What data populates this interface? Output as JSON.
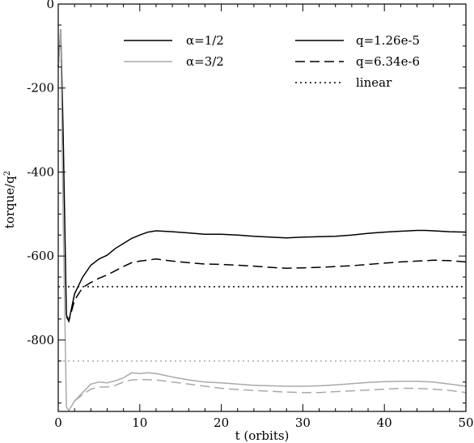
{
  "chart_data": {
    "type": "line",
    "xlabel": "t (orbits)",
    "ylabel": "torque/q",
    "ylabel_superscript": "2",
    "xlim": [
      0,
      50
    ],
    "ylim": [
      -970,
      0
    ],
    "xticks": [
      0,
      10,
      20,
      30,
      40,
      50
    ],
    "yticks": [
      0,
      -200,
      -400,
      -600,
      -800
    ],
    "legend_alpha": [
      {
        "label": "α=1/2",
        "color": "#000000"
      },
      {
        "label": "α=3/2",
        "color": "#aaaaaa"
      }
    ],
    "legend_q": [
      {
        "label": "q=1.26e-5",
        "style": "solid"
      },
      {
        "label": "q=6.34e-6",
        "style": "dashed"
      },
      {
        "label": "linear",
        "style": "dotted"
      }
    ],
    "series": [
      {
        "alpha": "1/2",
        "q": "1.26e-5",
        "color": "#000000",
        "style": "solid",
        "x": [
          0,
          0.3,
          0.6,
          1.0,
          1.3,
          2,
          3,
          4,
          5,
          6,
          7,
          8,
          9,
          10,
          11,
          12,
          14,
          16,
          18,
          20,
          22,
          24,
          26,
          28,
          30,
          32,
          34,
          36,
          38,
          40,
          42,
          44,
          45,
          46,
          48,
          50
        ],
        "y": [
          -150,
          -60,
          -300,
          -740,
          -755,
          -690,
          -650,
          -622,
          -607,
          -598,
          -582,
          -570,
          -558,
          -550,
          -543,
          -540,
          -542,
          -545,
          -548,
          -548,
          -550,
          -553,
          -555,
          -557,
          -555,
          -554,
          -553,
          -550,
          -546,
          -543,
          -541,
          -539,
          -539,
          -540,
          -542,
          -543
        ]
      },
      {
        "alpha": "1/2",
        "q": "6.34e-6",
        "color": "#000000",
        "style": "dashed",
        "x": [
          1.0,
          1.3,
          2,
          3,
          4,
          5,
          6,
          7,
          8,
          9,
          10,
          12,
          14,
          16,
          18,
          20,
          22,
          24,
          26,
          28,
          30,
          32,
          34,
          36,
          38,
          40,
          42,
          44,
          46,
          48,
          50
        ],
        "y": [
          -745,
          -755,
          -705,
          -675,
          -663,
          -653,
          -645,
          -635,
          -625,
          -616,
          -612,
          -607,
          -612,
          -616,
          -619,
          -620,
          -622,
          -624,
          -627,
          -629,
          -628,
          -627,
          -625,
          -623,
          -620,
          -617,
          -614,
          -612,
          -610,
          -611,
          -614
        ]
      },
      {
        "alpha": "1/2",
        "label": "linear",
        "color": "#000000",
        "style": "dotted",
        "x": [
          0,
          50
        ],
        "y": [
          -673,
          -673
        ]
      },
      {
        "alpha": "3/2",
        "q": "1.26e-5",
        "color": "#aaaaaa",
        "style": "solid",
        "x": [
          0,
          0.3,
          0.6,
          1.0,
          1.3,
          2,
          3,
          4,
          5,
          6,
          7,
          8,
          9,
          10,
          11,
          12,
          14,
          16,
          18,
          20,
          22,
          24,
          26,
          28,
          30,
          32,
          34,
          36,
          38,
          40,
          42,
          44,
          46,
          48,
          50
        ],
        "y": [
          -150,
          -60,
          -500,
          -960,
          -968,
          -945,
          -925,
          -905,
          -900,
          -902,
          -897,
          -890,
          -878,
          -880,
          -878,
          -880,
          -888,
          -895,
          -900,
          -902,
          -905,
          -908,
          -909,
          -910,
          -910,
          -909,
          -907,
          -904,
          -901,
          -899,
          -898,
          -898,
          -900,
          -905,
          -910
        ]
      },
      {
        "alpha": "3/2",
        "q": "6.34e-6",
        "color": "#aaaaaa",
        "style": "dashed",
        "x": [
          2,
          3,
          4,
          5,
          6,
          7,
          8,
          9,
          10,
          12,
          14,
          16,
          18,
          20,
          22,
          24,
          26,
          28,
          30,
          32,
          34,
          36,
          38,
          40,
          42,
          44,
          46,
          48,
          50
        ],
        "y": [
          -945,
          -930,
          -917,
          -912,
          -912,
          -908,
          -900,
          -895,
          -894,
          -895,
          -900,
          -905,
          -910,
          -915,
          -918,
          -920,
          -922,
          -924,
          -925,
          -925,
          -923,
          -921,
          -919,
          -917,
          -915,
          -915,
          -917,
          -920,
          -925
        ]
      },
      {
        "alpha": "3/2",
        "label": "linear",
        "color": "#aaaaaa",
        "style": "dotted",
        "x": [
          0,
          50
        ],
        "y": [
          -850,
          -850
        ]
      }
    ]
  }
}
